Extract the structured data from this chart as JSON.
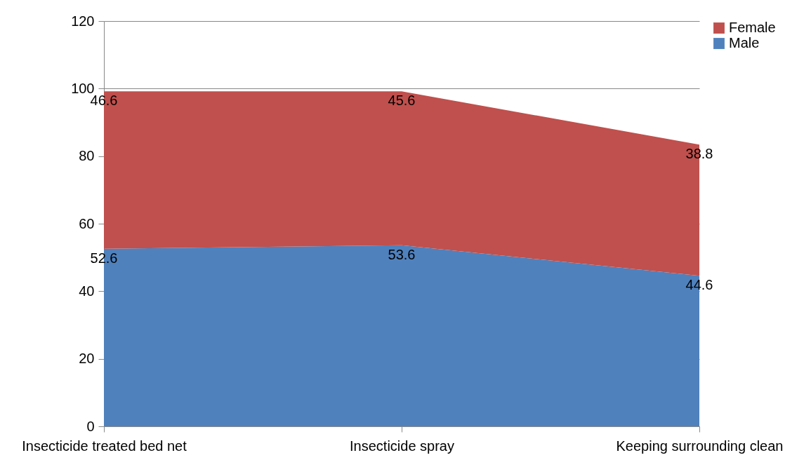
{
  "chart_data": {
    "type": "area",
    "stacked": true,
    "categories": [
      "Insecticide treated bed net",
      "Insecticide spray",
      "Keeping surrounding clean"
    ],
    "series": [
      {
        "name": "Male",
        "color": "#4f81bd",
        "values": [
          52.6,
          53.6,
          44.6
        ]
      },
      {
        "name": "Female",
        "color": "#c0504d",
        "values": [
          46.6,
          45.6,
          38.8
        ]
      }
    ],
    "ylim": [
      0,
      120
    ],
    "yticks": [
      0,
      20,
      40,
      60,
      80,
      100,
      120
    ],
    "grid": "y",
    "legend": "right",
    "data_labels": true
  }
}
